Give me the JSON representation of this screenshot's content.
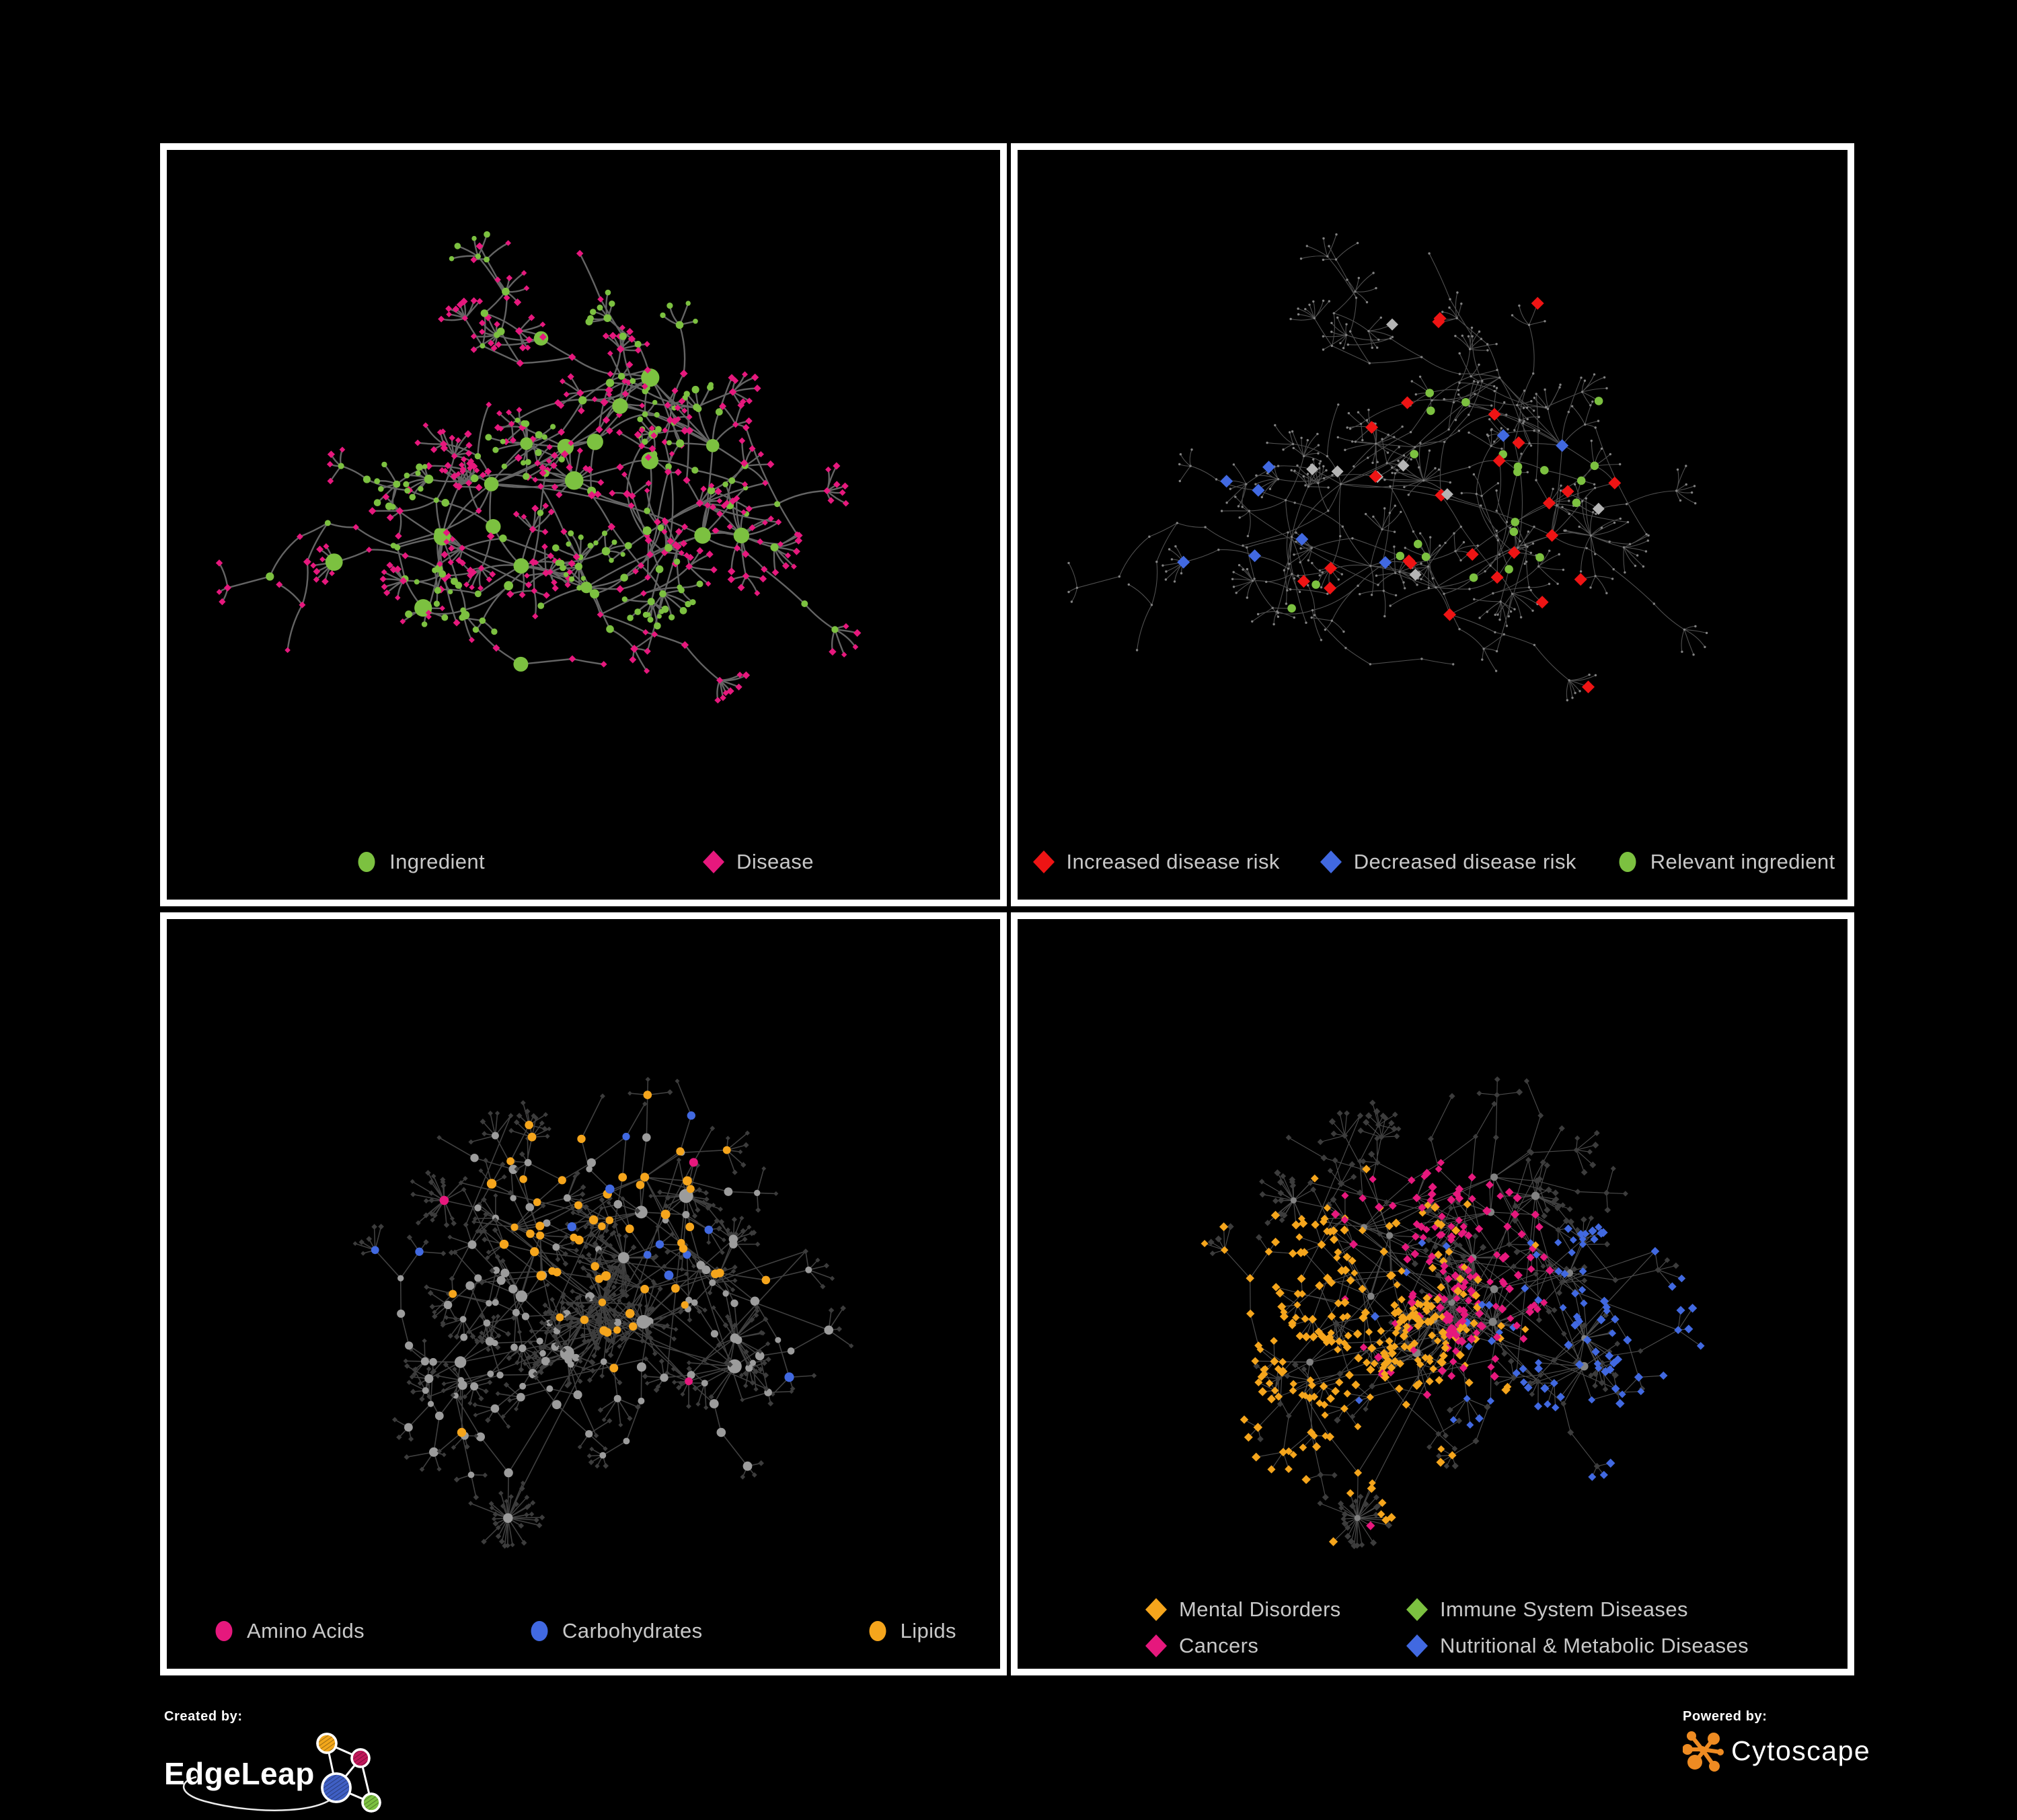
{
  "branding": {
    "created_by_label": "Created by:",
    "created_by_name": "EdgeLeap",
    "powered_by_label": "Powered by:",
    "powered_by_name": "Cytoscape"
  },
  "colors": {
    "background": "#000000",
    "panel_border": "#ffffff",
    "legend_text": "#c8c8c8",
    "ingredient_green": "#7CC140",
    "disease_pink": "#E6187D",
    "risk_red": "#EE1414",
    "risk_blue": "#4169E1",
    "neutral_gray_diamond": "#B5B5B5",
    "lipid_orange": "#F5A51C",
    "muted_circle_gray": "#9C9C9C",
    "muted_diamond_dark": "#3C3C3C",
    "edge_gray": "#6A6A6A",
    "cytoscape_orange": "#EE8B22"
  },
  "panels": [
    {
      "id": "ingredient-disease",
      "legend": [
        {
          "label": "Ingredient",
          "shape": "circle",
          "color": "#7CC140"
        },
        {
          "label": "Disease",
          "shape": "diamond",
          "color": "#E6187D"
        }
      ]
    },
    {
      "id": "disease-risk",
      "legend": [
        {
          "label": "Increased disease risk",
          "shape": "diamond",
          "color": "#EE1414"
        },
        {
          "label": "Decreased disease risk",
          "shape": "diamond",
          "color": "#4169E1"
        },
        {
          "label": "Relevant ingredient",
          "shape": "circle",
          "color": "#7CC140"
        }
      ]
    },
    {
      "id": "ingredient-classes",
      "legend": [
        {
          "label": "Amino Acids",
          "shape": "circle",
          "color": "#E6187D"
        },
        {
          "label": "Carbohydrates",
          "shape": "circle",
          "color": "#4169E1"
        },
        {
          "label": "Lipids",
          "shape": "circle",
          "color": "#F5A51C"
        }
      ]
    },
    {
      "id": "disease-classes",
      "legend_rows": [
        [
          {
            "label": "Mental Disorders",
            "shape": "diamond",
            "color": "#F5A51C"
          },
          {
            "label": "Immune System Diseases",
            "shape": "diamond",
            "color": "#7CC140"
          }
        ],
        [
          {
            "label": "Cancers",
            "shape": "diamond",
            "color": "#E6187D"
          },
          {
            "label": "Nutritional & Metabolic Diseases",
            "shape": "diamond",
            "color": "#4169E1"
          }
        ]
      ]
    }
  ]
}
